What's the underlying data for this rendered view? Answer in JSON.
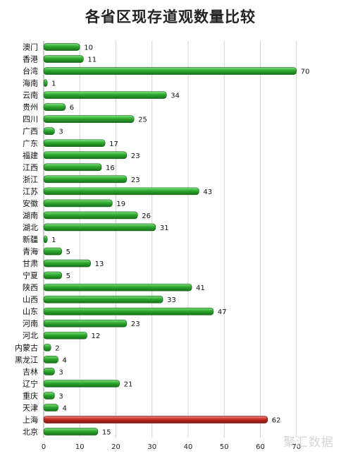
{
  "chart_data": {
    "type": "bar",
    "orientation": "horizontal",
    "title": "各省区现存道观数量比较",
    "xlabel": "",
    "ylabel": "",
    "xlim": [
      0,
      80
    ],
    "xticks": [
      0,
      10,
      20,
      30,
      40,
      50,
      60,
      70
    ],
    "grid": true,
    "categories": [
      "澳门",
      "香港",
      "台湾",
      "海南",
      "云南",
      "贵州",
      "四川",
      "广西",
      "广东",
      "福建",
      "江西",
      "浙江",
      "江苏",
      "安徽",
      "湖南",
      "湖北",
      "新疆",
      "青海",
      "甘肃",
      "宁夏",
      "陕西",
      "山西",
      "山东",
      "河南",
      "河北",
      "内蒙古",
      "黑龙江",
      "吉林",
      "辽宁",
      "重庆",
      "天津",
      "上海",
      "北京"
    ],
    "values": [
      10,
      11,
      70,
      1,
      34,
      6,
      25,
      3,
      17,
      23,
      16,
      23,
      43,
      19,
      26,
      31,
      1,
      5,
      13,
      5,
      41,
      33,
      47,
      23,
      12,
      2,
      4,
      3,
      21,
      3,
      4,
      62,
      15
    ],
    "colors": {
      "default": "#2ea82e",
      "highlight": "#c42a22"
    },
    "highlight_category": "上海"
  },
  "watermark": "聚汇数据"
}
